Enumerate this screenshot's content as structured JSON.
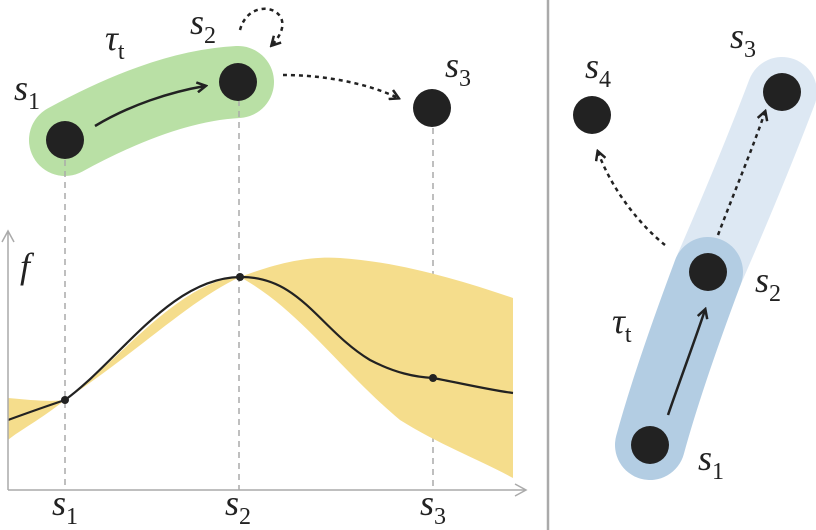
{
  "left": {
    "nodes": [
      {
        "label": {
          "base": "s",
          "sub": "1"
        }
      },
      {
        "label": {
          "base": "s",
          "sub": "2"
        }
      },
      {
        "label": {
          "base": "s",
          "sub": "3"
        }
      }
    ],
    "trajectory_label": {
      "base": "τ",
      "sub": "t"
    },
    "y_axis_label": "f",
    "x_ticks": [
      {
        "base": "s",
        "sub": "1"
      },
      {
        "base": "s",
        "sub": "2"
      },
      {
        "base": "s",
        "sub": "3"
      }
    ]
  },
  "right": {
    "nodes": [
      {
        "label": {
          "base": "s",
          "sub": "1"
        }
      },
      {
        "label": {
          "base": "s",
          "sub": "2"
        }
      },
      {
        "label": {
          "base": "s",
          "sub": "3"
        }
      },
      {
        "label": {
          "base": "s",
          "sub": "4"
        }
      }
    ],
    "trajectory_label": {
      "base": "τ",
      "sub": "t"
    }
  }
}
